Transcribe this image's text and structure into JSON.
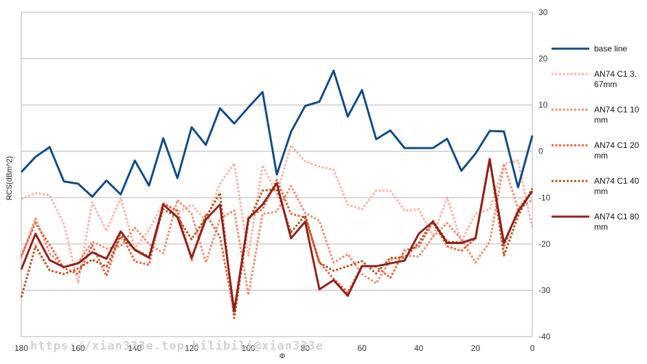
{
  "watermark": "https://xian333e.top bilibili@xian333e",
  "chart_data": {
    "type": "line",
    "title": "",
    "xlabel": "Φ",
    "ylabel": "RCS(dBm^2)",
    "xlim": [
      180,
      0
    ],
    "ylim": [
      -40,
      30
    ],
    "x_ticks": [
      "180",
      "160",
      "140",
      "120",
      "100",
      "80",
      "60",
      "40",
      "20",
      "0"
    ],
    "y_ticks": [
      "30",
      "20",
      "10",
      "0",
      "-10",
      "-20",
      "-30",
      "-40"
    ],
    "grid": "horizontal",
    "legend_position": "right",
    "x": [
      180,
      175,
      170,
      165,
      160,
      155,
      150,
      145,
      140,
      135,
      130,
      125,
      120,
      115,
      110,
      105,
      100,
      95,
      90,
      85,
      80,
      75,
      70,
      65,
      60,
      55,
      50,
      45,
      40,
      35,
      30,
      25,
      20,
      15,
      10,
      5,
      0
    ],
    "series": [
      {
        "name": "base line",
        "color": "#0f4a86",
        "style": "solid",
        "values": [
          -4.5,
          -1.2,
          0.9,
          -6.5,
          -7,
          -9.8,
          -6.3,
          -9.3,
          -2,
          -7.4,
          2.8,
          -5.8,
          5.2,
          1.4,
          9.3,
          6,
          9.5,
          12.8,
          -5,
          4.2,
          9.8,
          10.7,
          17.4,
          7.5,
          13.2,
          2.6,
          4.5,
          0.7,
          0.7,
          0.7,
          2.7,
          -4.2,
          -0.5,
          4.4,
          4.3,
          -7.8,
          3.4
        ]
      },
      {
        "name": "AN74 C1 3.67mm",
        "color": "#f6b2a2",
        "style": "dotted",
        "values": [
          -10.3,
          -9,
          -9.5,
          -15.7,
          -28.5,
          -11,
          -17.2,
          -10,
          -21,
          -17,
          -11,
          -13.2,
          -11.5,
          -15,
          -7,
          -2.6,
          -22.5,
          -3,
          -9.2,
          1.3,
          -2.2,
          -3.3,
          -4,
          -11.5,
          -12.5,
          -8.5,
          -8.5,
          -12.8,
          -12.5,
          -18.4,
          -10,
          -19.5,
          -13.5,
          -12.5,
          -2.7,
          -2,
          -16.7
        ]
      },
      {
        "name": "AN74 C1 10mm",
        "color": "#ea8a6f",
        "style": "dotted",
        "values": [
          -23,
          -14.5,
          -22,
          -25,
          -24,
          -19.5,
          -21,
          -20.5,
          -16.5,
          -20,
          -22,
          -10.5,
          -13.5,
          -24,
          -14.5,
          -12.8,
          -31,
          -13.5,
          -13,
          -7.5,
          -13.3,
          -15,
          -24,
          -22.2,
          -26.5,
          -28.5,
          -23.5,
          -22.5,
          -22.7,
          -18.5,
          -15.5,
          -19,
          -24,
          -19.5,
          -2.7,
          -12.5,
          -10.5
        ]
      },
      {
        "name": "AN74 C1 20mm",
        "color": "#e2603e",
        "style": "dotted",
        "values": [
          -22.5,
          -15.5,
          -20.2,
          -25.2,
          -26.5,
          -20.3,
          -26.9,
          -17.5,
          -23.8,
          -24.5,
          -11.3,
          -12.8,
          -23.5,
          -13.5,
          -18.5,
          -35,
          -14.3,
          -12.5,
          -6.2,
          -13.5,
          -14.3,
          -24,
          -27.5,
          -30.5,
          -24.7,
          -24.9,
          -27.3,
          -21.4,
          -20.6,
          -15.3,
          -20.5,
          -21.5,
          -18.8,
          -1.6,
          -20.5,
          -12.5,
          -8.5
        ]
      },
      {
        "name": "AN74 C1 40mm",
        "color": "#b5531c",
        "style": "dotted",
        "values": [
          -31.5,
          -20.5,
          -25.7,
          -26.5,
          -25.3,
          -23.4,
          -24.9,
          -18.4,
          -21.2,
          -22.7,
          -12.5,
          -14.2,
          -19,
          -14.3,
          -9,
          -36,
          -15.1,
          -8.5,
          -8.2,
          -17.5,
          -13.8,
          -24,
          -25.8,
          -24.8,
          -23.7,
          -26.4,
          -23,
          -23,
          -19.8,
          -15,
          -19.5,
          -19.7,
          -18.7,
          -1.5,
          -22.5,
          -14,
          -8
        ]
      },
      {
        "name": "AN74 C1 80mm",
        "color": "#8f2118",
        "style": "solid",
        "values": [
          -25.5,
          -17.8,
          -23.5,
          -25,
          -24.2,
          -21.8,
          -23.2,
          -17.3,
          -21.3,
          -23,
          -11.5,
          -14.2,
          -23,
          -14.7,
          -11.5,
          -34.5,
          -14.5,
          -11.5,
          -6.9,
          -18.8,
          -15.2,
          -29.8,
          -27.8,
          -31.2,
          -24.8,
          -24.8,
          -24.2,
          -23.6,
          -17.8,
          -15.2,
          -19.8,
          -19.8,
          -18.8,
          -1.8,
          -19.8,
          -13,
          -8.6
        ]
      }
    ],
    "legend_labels": [
      [
        "base line"
      ],
      [
        "AN74 C1 3.",
        "67mm"
      ],
      [
        "AN74 C1 10",
        "mm"
      ],
      [
        "AN74 C1 20",
        "mm"
      ],
      [
        "AN74 C1 40",
        "mm"
      ],
      [
        "AN74 C1 80",
        "mm"
      ]
    ]
  }
}
